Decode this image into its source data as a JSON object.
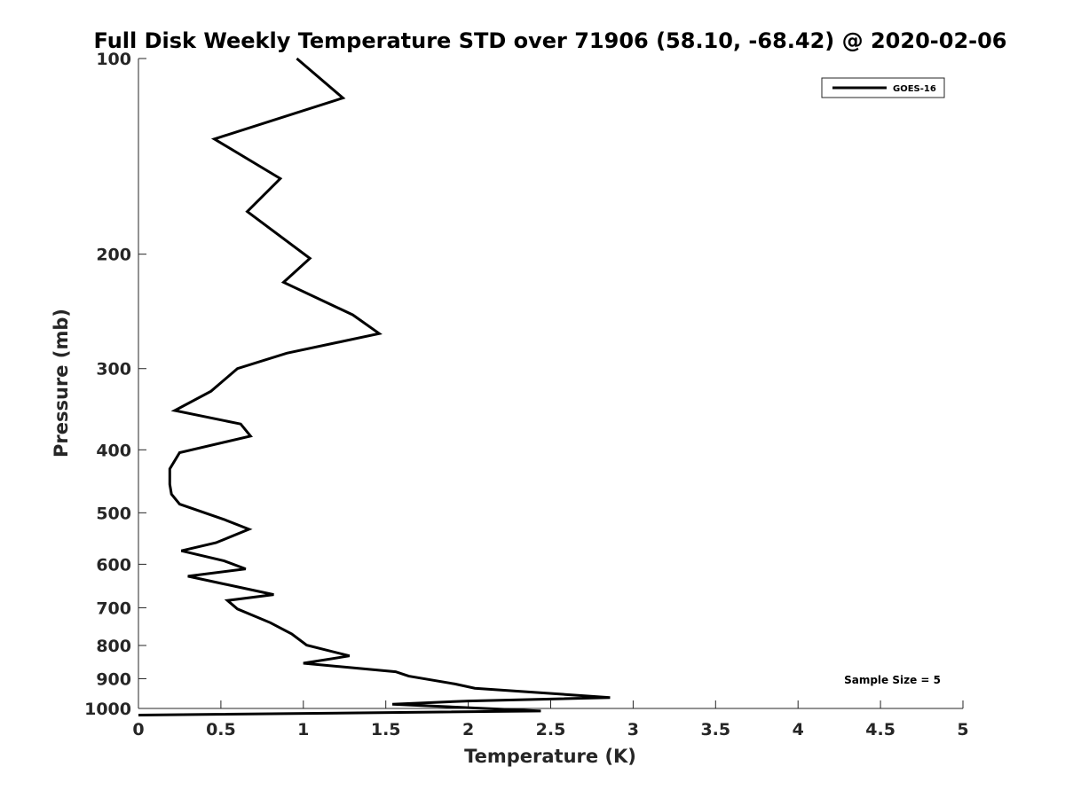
{
  "chart_data": {
    "type": "line",
    "title": "Full Disk Weekly Temperature STD over 71906 (58.10, -68.42) @ 2020-02-06",
    "xlabel": "Temperature (K)",
    "ylabel": "Pressure (mb)",
    "xlim": [
      0,
      5
    ],
    "ylim": [
      100,
      1000
    ],
    "yscale": "log",
    "yreversed": true,
    "grid": false,
    "legend_position": "top-right",
    "x_ticks": [
      "0",
      "0.5",
      "1",
      "1.5",
      "2",
      "2.5",
      "3",
      "3.5",
      "4",
      "4.5",
      "5"
    ],
    "y_ticks": [
      "100",
      "200",
      "300",
      "400",
      "500",
      "600",
      "700",
      "800",
      "900",
      "1000"
    ],
    "annotation": "Sample Size = 5",
    "series": [
      {
        "name": "GOES-16",
        "color": "#000000",
        "x": [
          0.96,
          1.24,
          0.46,
          0.86,
          0.66,
          1.04,
          0.88,
          1.3,
          1.46,
          0.9,
          0.6,
          0.44,
          0.22,
          0.62,
          0.68,
          0.25,
          0.19,
          0.19,
          0.2,
          0.25,
          0.52,
          0.67,
          0.47,
          0.26,
          0.52,
          0.65,
          0.3,
          0.82,
          0.54,
          0.6,
          0.8,
          0.93,
          1.02,
          1.28,
          1.0,
          1.56,
          1.64,
          1.92,
          2.04,
          2.86,
          2.0,
          1.54,
          2.44,
          0.0
        ],
        "y": [
          100,
          115,
          133,
          153,
          172,
          203,
          221,
          248,
          265,
          284,
          300,
          325,
          348,
          365,
          381,
          404,
          428,
          452,
          468,
          485,
          512,
          530,
          556,
          572,
          593,
          610,
          626,
          668,
          682,
          703,
          738,
          768,
          799,
          830,
          852,
          878,
          892,
          917,
          931,
          962,
          974,
          985,
          1009,
          1024
        ]
      }
    ]
  }
}
